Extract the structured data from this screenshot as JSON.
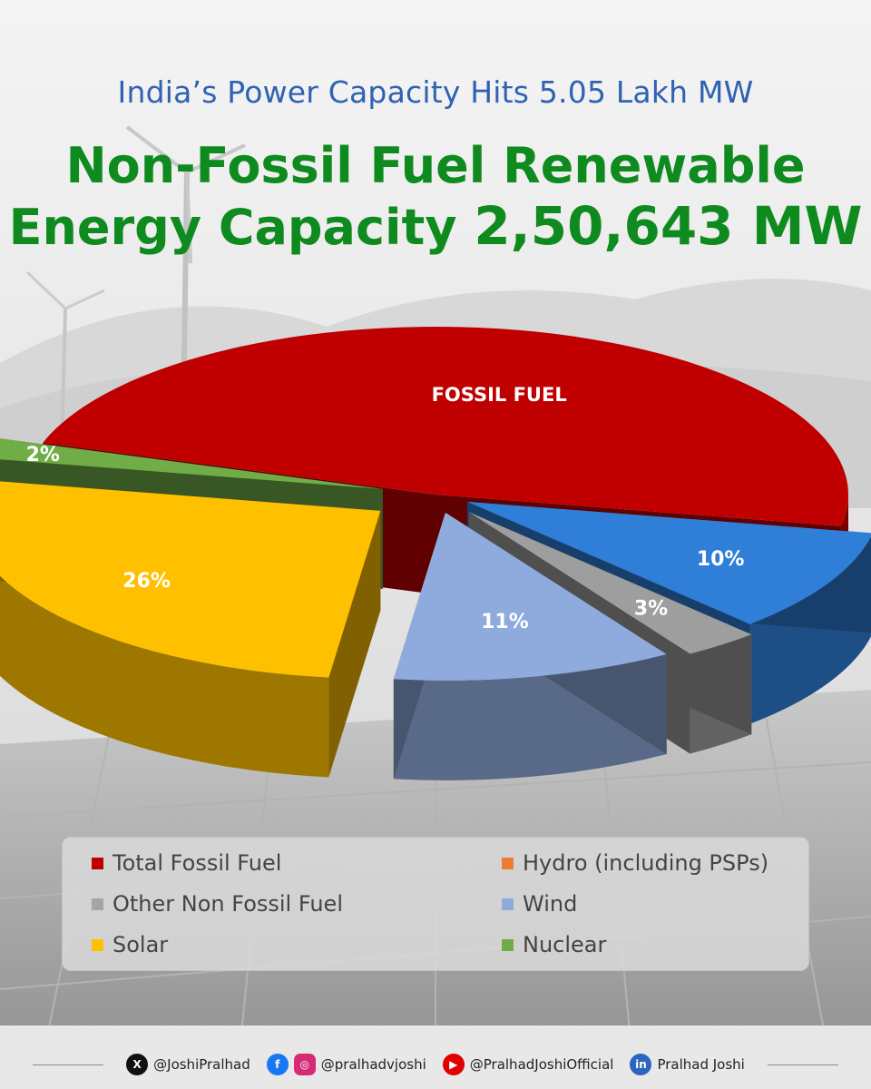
{
  "header": {
    "subtitle": "India’s Power Capacity Hits 5.05 Lakh MW",
    "title_line1": "Non-Fossil Fuel Renewable",
    "title_line2_text": "Energy Capacity",
    "title_line2_value": "2,50,643 MW"
  },
  "chart_data": {
    "type": "pie",
    "title": "",
    "style": "3d-exploded",
    "legend_placement": "bottom",
    "series": [
      {
        "name": "Total Fossil Fuel",
        "label": "FOSSIL FUEL",
        "value": 48,
        "color": "#c00000"
      },
      {
        "name": "Hydro (including PSPs)",
        "label": "10%",
        "value": 10,
        "color": "#2f7ed8"
      },
      {
        "name": "Other Non Fossil Fuel",
        "label": "3%",
        "value": 3,
        "color": "#9e9e9e"
      },
      {
        "name": "Wind",
        "label": "11%",
        "value": 11,
        "color": "#8faadc"
      },
      {
        "name": "Solar",
        "label": "26%",
        "value": 26,
        "color": "#ffc000"
      },
      {
        "name": "Nuclear",
        "label": "2%",
        "value": 2,
        "color": "#70ad47"
      }
    ],
    "legend": [
      {
        "label": "Total Fossil Fuel",
        "color": "#c00000"
      },
      {
        "label": "Hydro (including PSPs)",
        "color": "#ed7d31"
      },
      {
        "label": "Other Non Fossil Fuel",
        "color": "#a5a5a5"
      },
      {
        "label": "Wind",
        "color": "#8faadc"
      },
      {
        "label": "Solar",
        "color": "#ffc000"
      },
      {
        "label": "Nuclear",
        "color": "#70ad47"
      }
    ]
  },
  "footer": {
    "x_handle": "@JoshiPralhad",
    "fb_insta_handle": "@pralhadvjoshi",
    "youtube_handle": "@PralhadJoshiOfficial",
    "linkedin_handle": "Pralhad Joshi",
    "icons": [
      "x-icon",
      "facebook-icon",
      "instagram-icon",
      "youtube-icon",
      "linkedin-icon"
    ]
  }
}
